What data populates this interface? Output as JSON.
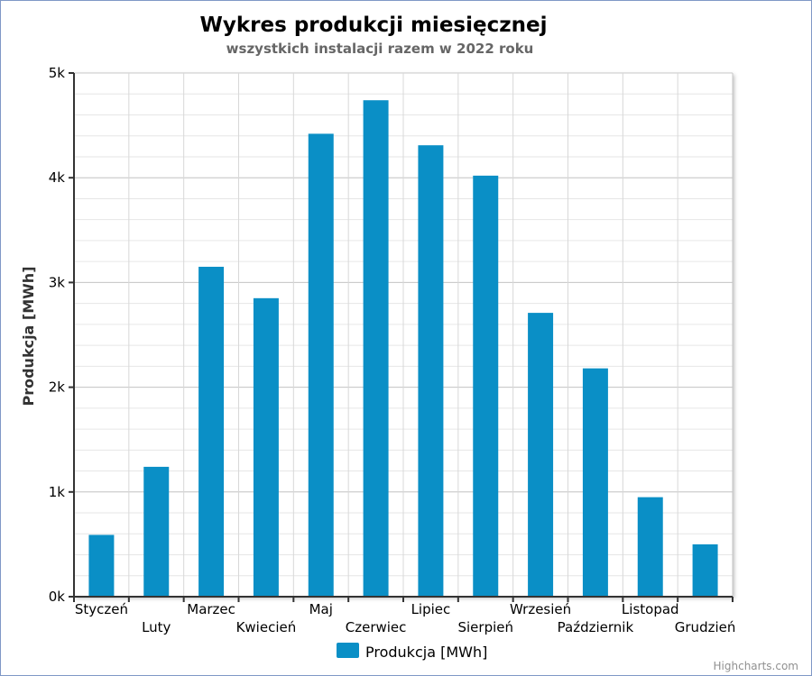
{
  "chart_data": {
    "type": "bar",
    "title": "Wykres produkcji miesięcznej",
    "subtitle": "wszystkich instalacji razem w 2022 roku",
    "xlabel": "",
    "ylabel": "Produkcja [MWh]",
    "categories": [
      "Styczeń",
      "Luty",
      "Marzec",
      "Kwiecień",
      "Maj",
      "Czerwiec",
      "Lipiec",
      "Sierpień",
      "Wrzesień",
      "Październik",
      "Listopad",
      "Grudzień"
    ],
    "series": [
      {
        "name": "Produkcja [MWh]",
        "color": "#0a8fc6",
        "values": [
          590,
          1240,
          3150,
          2850,
          4420,
          4740,
          4310,
          4020,
          2710,
          2180,
          950,
          500
        ]
      }
    ],
    "ylim": [
      0,
      5000
    ],
    "yticks": [
      0,
      1000,
      2000,
      3000,
      4000,
      5000
    ],
    "ytick_labels": [
      "0k",
      "1k",
      "2k",
      "3k",
      "4k",
      "5k"
    ],
    "grid": true,
    "legend_position": "bottom-center"
  },
  "credits": "Highcharts.com"
}
